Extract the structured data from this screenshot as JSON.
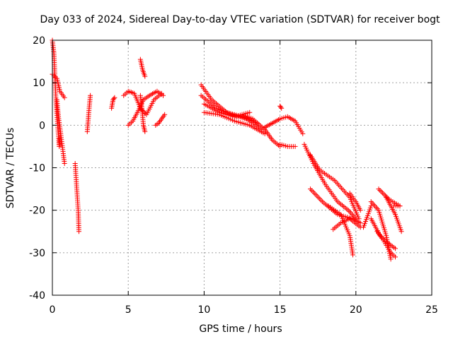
{
  "chart_data": {
    "type": "scatter",
    "title": "Day 033 of 2024, Sidereal Day-to-day VTEC variation (SDTVAR) for receiver bogt",
    "xlabel": "GPS time / hours",
    "ylabel": "SDTVAR / TECUs",
    "xlim": [
      0,
      25
    ],
    "ylim": [
      -40,
      20
    ],
    "xticks": [
      0,
      5,
      10,
      15,
      20,
      25
    ],
    "yticks": [
      -40,
      -30,
      -20,
      -10,
      0,
      10,
      20
    ],
    "xtick_labels": [
      "0",
      "5",
      "10",
      "15",
      "20",
      "25"
    ],
    "ytick_labels": [
      "-40",
      "-30",
      "-20",
      "-10",
      "0",
      "10",
      "20"
    ],
    "grid": true,
    "marker": "plus",
    "color": "#ff0000",
    "tracks": [
      {
        "name": "a",
        "x": [
          0.0,
          0.1,
          0.15,
          0.25,
          0.35,
          0.45,
          0.5
        ],
        "y": [
          20,
          17,
          13,
          5,
          0,
          -5,
          -3
        ]
      },
      {
        "name": "b",
        "x": [
          0.0,
          0.3,
          0.5,
          0.8
        ],
        "y": [
          12,
          11,
          8,
          6.5
        ]
      },
      {
        "name": "c",
        "x": [
          0.3,
          0.4,
          0.55,
          0.8
        ],
        "y": [
          6,
          2,
          -2,
          -9
        ]
      },
      {
        "name": "d",
        "x": [
          1.5,
          1.7,
          1.75
        ],
        "y": [
          -9,
          -20,
          -25
        ]
      },
      {
        "name": "e",
        "x": [
          2.3,
          2.4,
          2.5
        ],
        "y": [
          -1.5,
          3,
          7
        ]
      },
      {
        "name": "f",
        "x": [
          3.9,
          4.0,
          4.1
        ],
        "y": [
          4,
          6,
          6.5
        ]
      },
      {
        "name": "g",
        "x": [
          4.7,
          5.0,
          5.4,
          5.8,
          6.2,
          6.7,
          7.2
        ],
        "y": [
          7,
          8,
          7.5,
          4,
          2.5,
          6,
          7.5
        ]
      },
      {
        "name": "h",
        "x": [
          5.0,
          5.3,
          5.6,
          6.0,
          6.4,
          6.9,
          7.3
        ],
        "y": [
          0,
          1,
          3,
          6,
          7,
          8,
          7
        ]
      },
      {
        "name": "i",
        "x": [
          5.8,
          5.95,
          6.1
        ],
        "y": [
          15.5,
          13,
          11.5
        ]
      },
      {
        "name": "j",
        "x": [
          5.8,
          5.9,
          6.0,
          6.1
        ],
        "y": [
          7,
          4,
          0,
          -1.5
        ]
      },
      {
        "name": "k",
        "x": [
          6.8,
          7.0,
          7.2,
          7.4
        ],
        "y": [
          0,
          0.5,
          1.5,
          2.5
        ]
      },
      {
        "name": "l",
        "x": [
          9.8,
          10.5,
          11.5,
          12.5,
          13.5
        ],
        "y": [
          9.5,
          6,
          3,
          2,
          0.5
        ]
      },
      {
        "name": "m",
        "x": [
          9.8,
          10.8,
          11.8,
          12.8,
          13.8
        ],
        "y": [
          7,
          4,
          2.5,
          1.5,
          -1
        ]
      },
      {
        "name": "n",
        "x": [
          10.0,
          11.0,
          12.0,
          13.0,
          14.0
        ],
        "y": [
          3,
          2.5,
          1,
          0,
          -2
        ]
      },
      {
        "name": "o",
        "x": [
          10.0,
          11.0,
          12.0,
          13.0
        ],
        "y": [
          5,
          3,
          2,
          3
        ]
      },
      {
        "name": "p",
        "x": [
          12.5,
          13.2,
          14.0,
          14.5,
          15.0
        ],
        "y": [
          2.5,
          1.5,
          -1,
          -3.5,
          -5
        ]
      },
      {
        "name": "q",
        "x": [
          15.0,
          15.5,
          16.0
        ],
        "y": [
          -4.5,
          -5,
          -5
        ]
      },
      {
        "name": "r",
        "x": [
          14.0,
          14.5,
          15.0,
          15.5,
          16.0,
          16.5
        ],
        "y": [
          -0.5,
          0.5,
          1.5,
          2,
          1,
          -2
        ]
      },
      {
        "name": "s",
        "x": [
          15.0,
          15.1
        ],
        "y": [
          4.5,
          4
        ]
      },
      {
        "name": "t",
        "x": [
          16.6,
          17.2,
          18.0,
          18.8,
          19.5,
          20.0
        ],
        "y": [
          -4.5,
          -9,
          -14,
          -18,
          -20,
          -22
        ]
      },
      {
        "name": "u",
        "x": [
          17.0,
          17.6,
          18.6,
          19.6,
          20.2
        ],
        "y": [
          -7,
          -10.5,
          -13,
          -17,
          -22
        ]
      },
      {
        "name": "v",
        "x": [
          17.0,
          17.8,
          18.8,
          19.8,
          20.3
        ],
        "y": [
          -15,
          -18,
          -21,
          -22,
          -23
        ]
      },
      {
        "name": "w",
        "x": [
          18.2,
          19.0,
          19.6,
          19.8
        ],
        "y": [
          -19,
          -21,
          -26,
          -30.5
        ]
      },
      {
        "name": "x",
        "x": [
          18.5,
          19.0,
          19.6,
          20.3
        ],
        "y": [
          -24.5,
          -23,
          -22,
          -24
        ]
      },
      {
        "name": "y",
        "x": [
          19.6,
          20.0,
          20.3
        ],
        "y": [
          -16,
          -18,
          -20
        ]
      },
      {
        "name": "z",
        "x": [
          21.0,
          21.5,
          22.0,
          22.3
        ],
        "y": [
          -18,
          -20,
          -26,
          -31.5
        ]
      },
      {
        "name": "aa",
        "x": [
          21.4,
          21.8,
          22.3,
          22.6
        ],
        "y": [
          -25,
          -27,
          -30,
          -31
        ]
      },
      {
        "name": "ab",
        "x": [
          21.0,
          21.6,
          22.2,
          22.6
        ],
        "y": [
          -22,
          -26,
          -28,
          -29
        ]
      },
      {
        "name": "ac",
        "x": [
          22.0,
          22.6,
          23.0
        ],
        "y": [
          -17,
          -21,
          -25
        ]
      },
      {
        "name": "ad",
        "x": [
          21.5,
          22.2,
          22.9
        ],
        "y": [
          -15,
          -17.5,
          -19
        ]
      },
      {
        "name": "ae",
        "x": [
          22.5,
          22.9
        ],
        "y": [
          -19,
          -19
        ]
      },
      {
        "name": "af",
        "x": [
          20.5,
          21.0
        ],
        "y": [
          -24,
          -19
        ]
      }
    ]
  }
}
